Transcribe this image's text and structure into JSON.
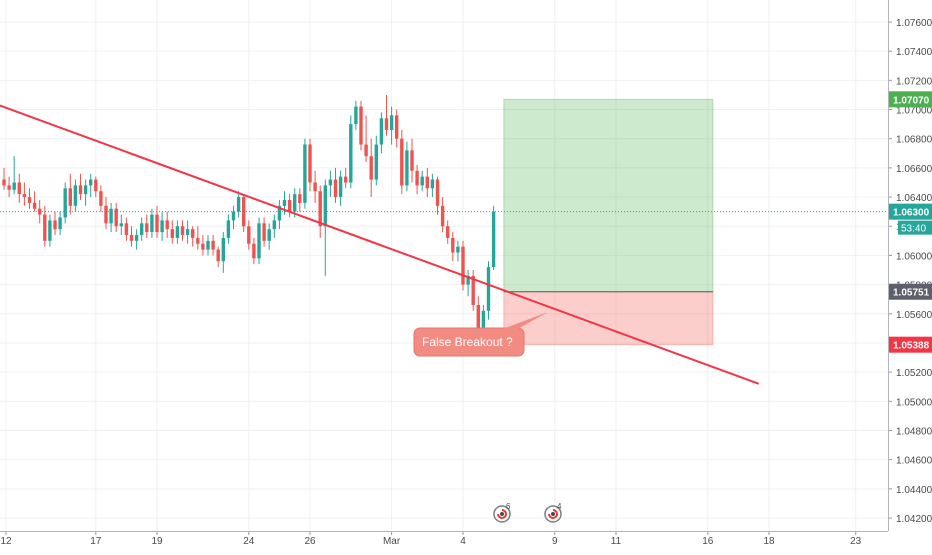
{
  "chart_data": {
    "type": "candlestick",
    "symbol_hint": "",
    "y_axis": {
      "ticks": [
        "1.07600",
        "1.07400",
        "1.07200",
        "1.07000",
        "1.06800",
        "1.06600",
        "1.06400",
        "1.06200",
        "1.06000",
        "1.05800",
        "1.05600",
        "1.05400",
        "1.05200",
        "1.05000",
        "1.04800",
        "1.04600",
        "1.04400",
        "1.04200"
      ],
      "range": [
        1.0415,
        1.0775
      ]
    },
    "x_axis": {
      "ticks": [
        "12",
        "17",
        "19",
        "24",
        "26",
        "Mar",
        "4",
        "9",
        "11",
        "16",
        "18",
        "23"
      ]
    },
    "price_labels": {
      "target": "1.07070",
      "current": "1.06300",
      "countdown": "53:40",
      "entry": "1.05751",
      "stop": "1.05388"
    },
    "trendline": {
      "start": {
        "bar": -1,
        "price": 1.0703
      },
      "end": {
        "bar": 148,
        "price": 1.0512
      }
    },
    "position": {
      "start_bar": 98,
      "end_bar": 139,
      "entry": 1.05751,
      "target": 1.0707,
      "stop": 1.05388
    },
    "annotation": "False Breakout ?",
    "event_markers": [
      {
        "label": "6",
        "bar": 100
      },
      {
        "label": "4",
        "bar": 110
      }
    ],
    "candles": [
      [
        1.0652,
        1.066,
        1.0645,
        1.0648
      ],
      [
        1.0648,
        1.0654,
        1.064,
        1.0645
      ],
      [
        1.0645,
        1.0668,
        1.0642,
        1.065
      ],
      [
        1.065,
        1.0656,
        1.0636,
        1.0642
      ],
      [
        1.0642,
        1.065,
        1.0634,
        1.064
      ],
      [
        1.064,
        1.0646,
        1.0632,
        1.0636
      ],
      [
        1.0636,
        1.0644,
        1.063,
        1.0632
      ],
      [
        1.0632,
        1.0638,
        1.0622,
        1.0628
      ],
      [
        1.0628,
        1.0634,
        1.0606,
        1.061
      ],
      [
        1.061,
        1.0628,
        1.0606,
        1.0624
      ],
      [
        1.0624,
        1.063,
        1.0614,
        1.0618
      ],
      [
        1.0618,
        1.063,
        1.0614,
        1.0626
      ],
      [
        1.0626,
        1.065,
        1.0622,
        1.0646
      ],
      [
        1.0646,
        1.0656,
        1.0628,
        1.0634
      ],
      [
        1.0634,
        1.0652,
        1.063,
        1.0648
      ],
      [
        1.0648,
        1.0656,
        1.0638,
        1.0642
      ],
      [
        1.0642,
        1.0652,
        1.0634,
        1.0648
      ],
      [
        1.0648,
        1.0656,
        1.064,
        1.0652
      ],
      [
        1.0652,
        1.0654,
        1.064,
        1.0644
      ],
      [
        1.0644,
        1.0648,
        1.063,
        1.0634
      ],
      [
        1.0634,
        1.064,
        1.0618,
        1.0622
      ],
      [
        1.0622,
        1.0636,
        1.0616,
        1.0632
      ],
      [
        1.0632,
        1.0636,
        1.0616,
        1.062
      ],
      [
        1.062,
        1.0628,
        1.0614,
        1.0622
      ],
      [
        1.0622,
        1.0626,
        1.061,
        1.0614
      ],
      [
        1.0614,
        1.062,
        1.0606,
        1.061
      ],
      [
        1.061,
        1.0618,
        1.0604,
        1.0614
      ],
      [
        1.0614,
        1.0626,
        1.061,
        1.0622
      ],
      [
        1.0622,
        1.0628,
        1.0612,
        1.0616
      ],
      [
        1.0616,
        1.0632,
        1.0612,
        1.0628
      ],
      [
        1.0628,
        1.0634,
        1.0612,
        1.0616
      ],
      [
        1.0616,
        1.063,
        1.061,
        1.0624
      ],
      [
        1.0624,
        1.063,
        1.0612,
        1.0618
      ],
      [
        1.0618,
        1.0624,
        1.0608,
        1.0612
      ],
      [
        1.0612,
        1.0624,
        1.0608,
        1.062
      ],
      [
        1.062,
        1.0624,
        1.061,
        1.0614
      ],
      [
        1.0614,
        1.0624,
        1.0608,
        1.0618
      ],
      [
        1.0618,
        1.062,
        1.0606,
        1.0612
      ],
      [
        1.0612,
        1.062,
        1.0604,
        1.0608
      ],
      [
        1.0608,
        1.0614,
        1.06,
        1.0604
      ],
      [
        1.0604,
        1.0614,
        1.06,
        1.061
      ],
      [
        1.061,
        1.0614,
        1.06,
        1.0604
      ],
      [
        1.0604,
        1.0606,
        1.0592,
        1.0596
      ],
      [
        1.0596,
        1.0616,
        1.0588,
        1.0612
      ],
      [
        1.0612,
        1.0628,
        1.0608,
        1.0624
      ],
      [
        1.0624,
        1.0634,
        1.0618,
        1.063
      ],
      [
        1.063,
        1.0644,
        1.0626,
        1.064
      ],
      [
        1.064,
        1.0642,
        1.0616,
        1.062
      ],
      [
        1.062,
        1.0624,
        1.0604,
        1.0608
      ],
      [
        1.0608,
        1.0612,
        1.0594,
        1.0598
      ],
      [
        1.0598,
        1.0626,
        1.0594,
        1.0622
      ],
      [
        1.0622,
        1.0626,
        1.0606,
        1.061
      ],
      [
        1.061,
        1.0622,
        1.0604,
        1.0618
      ],
      [
        1.0618,
        1.0628,
        1.0612,
        1.0624
      ],
      [
        1.0624,
        1.0638,
        1.0618,
        1.0634
      ],
      [
        1.0634,
        1.0644,
        1.0628,
        1.0638
      ],
      [
        1.0638,
        1.0642,
        1.0626,
        1.063
      ],
      [
        1.063,
        1.0646,
        1.0626,
        1.0642
      ],
      [
        1.0642,
        1.0646,
        1.063,
        1.0636
      ],
      [
        1.0636,
        1.068,
        1.0632,
        1.0676
      ],
      [
        1.0676,
        1.068,
        1.0644,
        1.065
      ],
      [
        1.065,
        1.0658,
        1.0636,
        1.0644
      ],
      [
        1.0644,
        1.0648,
        1.0612,
        1.062
      ],
      [
        1.062,
        1.0652,
        1.0586,
        1.0648
      ],
      [
        1.0648,
        1.0658,
        1.064,
        1.0652
      ],
      [
        1.0652,
        1.066,
        1.0636,
        1.064
      ],
      [
        1.064,
        1.0658,
        1.0634,
        1.0654
      ],
      [
        1.0654,
        1.066,
        1.0646,
        1.065
      ],
      [
        1.065,
        1.0696,
        1.0646,
        1.069
      ],
      [
        1.069,
        1.0706,
        1.0686,
        1.0702
      ],
      [
        1.0702,
        1.0706,
        1.0672,
        1.0676
      ],
      [
        1.0676,
        1.0696,
        1.0664,
        1.0668
      ],
      [
        1.0668,
        1.068,
        1.064,
        1.0652
      ],
      [
        1.0652,
        1.0682,
        1.0648,
        1.0676
      ],
      [
        1.0676,
        1.0698,
        1.067,
        1.0694
      ],
      [
        1.0694,
        1.071,
        1.0682,
        1.0686
      ],
      [
        1.0686,
        1.0702,
        1.0676,
        1.0696
      ],
      [
        1.0696,
        1.07,
        1.0674,
        1.068
      ],
      [
        1.068,
        1.0686,
        1.0642,
        1.0648
      ],
      [
        1.0648,
        1.0678,
        1.0644,
        1.0672
      ],
      [
        1.0672,
        1.068,
        1.065,
        1.0658
      ],
      [
        1.0658,
        1.0662,
        1.0642,
        1.0648
      ],
      [
        1.0648,
        1.0658,
        1.0644,
        1.0654
      ],
      [
        1.0654,
        1.066,
        1.064,
        1.0646
      ],
      [
        1.0646,
        1.0656,
        1.064,
        1.0652
      ],
      [
        1.0652,
        1.0654,
        1.0628,
        1.0634
      ],
      [
        1.0634,
        1.064,
        1.0616,
        1.062
      ],
      [
        1.062,
        1.0624,
        1.0608,
        1.0612
      ],
      [
        1.0612,
        1.0616,
        1.0596,
        1.0602
      ],
      [
        1.0602,
        1.061,
        1.0596,
        1.0606
      ],
      [
        1.0606,
        1.061,
        1.0576,
        1.058
      ],
      [
        1.058,
        1.059,
        1.0572,
        1.0586
      ],
      [
        1.0586,
        1.059,
        1.0562,
        1.0566
      ],
      [
        1.0566,
        1.0572,
        1.0542,
        1.0548
      ],
      [
        1.0548,
        1.0566,
        1.054,
        1.0562
      ],
      [
        1.0562,
        1.0596,
        1.0556,
        1.0592
      ],
      [
        1.0592,
        1.0634,
        1.059,
        1.063
      ]
    ]
  }
}
